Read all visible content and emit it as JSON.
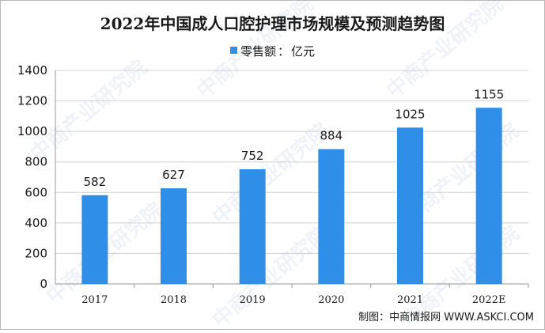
{
  "title": "2022年中国成人口腔护理市场规模及预测趋势图",
  "legend": {
    "series_name": "零售额",
    "separator": "：",
    "unit": "亿元"
  },
  "source": "制图：中商情报网 WWW.ASKCI.COM",
  "watermark": "中商产业研究院",
  "colors": {
    "bar": "#2f8ee8",
    "axis": "#9a9a9a",
    "grid": "#d0d0d0"
  },
  "chart_data": {
    "type": "bar",
    "title": "2022年中国成人口腔护理市场规模及预测趋势图",
    "categories": [
      "2017",
      "2018",
      "2019",
      "2020",
      "2021",
      "2022E"
    ],
    "series": [
      {
        "name": "零售额：亿元",
        "values": [
          582,
          627,
          752,
          884,
          1025,
          1155
        ]
      }
    ],
    "data_labels": [
      "582",
      "627",
      "752",
      "884",
      "1025",
      "1155"
    ],
    "ylim": [
      0,
      1400
    ],
    "yticks": [
      0,
      200,
      400,
      600,
      800,
      1000,
      1200,
      1400
    ],
    "grid": true,
    "legend_position": "top-center",
    "xlabel": "",
    "ylabel": ""
  }
}
